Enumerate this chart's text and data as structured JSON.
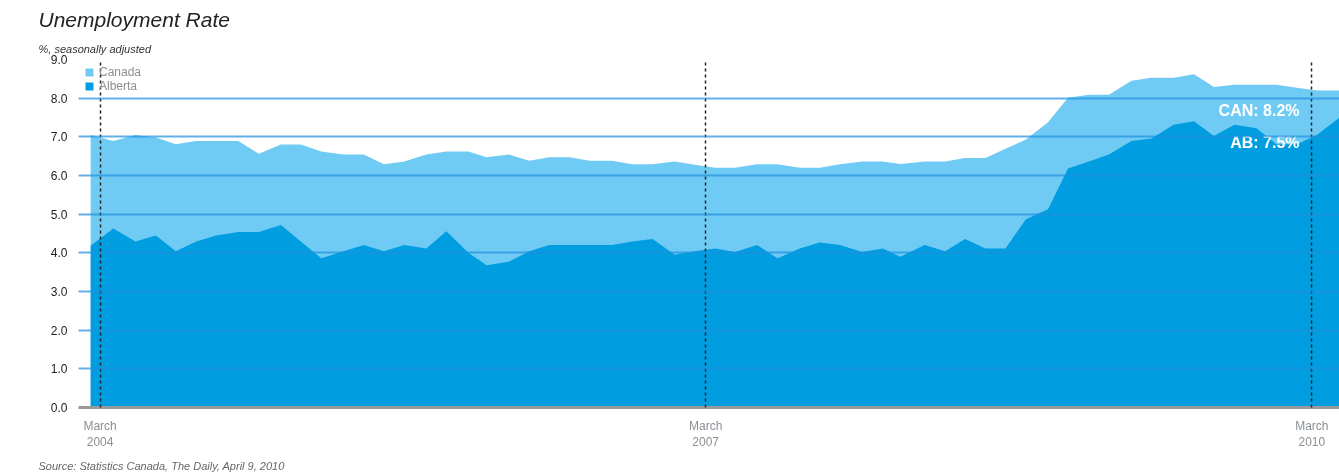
{
  "chart_data": {
    "type": "area",
    "title": "Unemployment Rate",
    "subtitle": "%, seasonally adjusted",
    "x": [
      "2004-02-13",
      "2004-03-25",
      "2004-05-04",
      "2004-06-10",
      "2004-07-16",
      "2004-08-22",
      "2004-09-27",
      "2004-11-06",
      "2004-12-13",
      "2005-01-22",
      "2005-02-27",
      "2005-04-05",
      "2005-05-15",
      "2005-06-21",
      "2005-07-27",
      "2005-09-02",
      "2005-10-12",
      "2005-11-17",
      "2005-12-27",
      "2006-01-29",
      "2006-03-10",
      "2006-04-16",
      "2006-05-22",
      "2006-06-28",
      "2006-08-03",
      "2006-09-13",
      "2006-10-19",
      "2006-11-25",
      "2007-01-04",
      "2007-02-09",
      "2007-03-18",
      "2007-04-23",
      "2007-06-02",
      "2007-07-09",
      "2007-08-18",
      "2007-09-23",
      "2007-10-30",
      "2007-12-09",
      "2008-01-15",
      "2008-02-16",
      "2008-03-31",
      "2008-05-07",
      "2008-06-12",
      "2008-07-19",
      "2008-08-24",
      "2008-09-30",
      "2008-11-09",
      "2008-12-15",
      "2009-01-22",
      "2009-02-27",
      "2009-04-09",
      "2009-05-15",
      "2009-06-24",
      "2009-07-31",
      "2009-09-05",
      "2009-10-12",
      "2009-11-21",
      "2009-12-27",
      "2010-02-02",
      "2010-03-10",
      "2010-04-20"
    ],
    "series": [
      {
        "name": "Canada",
        "color": "#6fcbf3",
        "values": [
          7.05,
          6.89,
          7.05,
          6.98,
          6.81,
          6.89,
          6.89,
          6.89,
          6.56,
          6.8,
          6.8,
          6.62,
          6.54,
          6.54,
          6.29,
          6.36,
          6.54,
          6.62,
          6.62,
          6.47,
          6.54,
          6.38,
          6.47,
          6.47,
          6.38,
          6.38,
          6.29,
          6.29,
          6.36,
          6.28,
          6.2,
          6.2,
          6.29,
          6.29,
          6.2,
          6.2,
          6.29,
          6.36,
          6.36,
          6.3,
          6.36,
          6.36,
          6.45,
          6.45,
          6.69,
          6.93,
          7.38,
          8.01,
          8.09,
          8.09,
          8.45,
          8.53,
          8.53,
          8.62,
          8.29,
          8.35,
          8.35,
          8.35,
          8.27,
          8.2,
          8.2
        ]
      },
      {
        "name": "Alberta",
        "color": "#009ee0",
        "values": [
          4.18,
          4.63,
          4.29,
          4.45,
          4.04,
          4.29,
          4.45,
          4.54,
          4.54,
          4.72,
          4.29,
          3.86,
          4.04,
          4.2,
          4.04,
          4.2,
          4.11,
          4.56,
          4.0,
          3.68,
          3.77,
          4.04,
          4.2,
          4.2,
          4.2,
          4.2,
          4.29,
          4.36,
          3.95,
          4.04,
          4.11,
          4.02,
          4.2,
          3.86,
          4.11,
          4.27,
          4.2,
          4.02,
          4.11,
          3.9,
          4.2,
          4.04,
          4.36,
          4.11,
          4.11,
          4.87,
          5.13,
          6.18,
          6.36,
          6.54,
          6.89,
          6.96,
          7.31,
          7.4,
          7.02,
          7.31,
          7.22,
          6.81,
          6.81,
          7.05,
          7.5
        ]
      }
    ],
    "xlim": [
      "2004-01-22",
      "2010-04-20"
    ],
    "xticks": [
      {
        "value": "2004-03-01",
        "label": "March\n2004"
      },
      {
        "value": "2007-03-01",
        "label": "March\n2007"
      },
      {
        "value": "2010-03-01",
        "label": "March\n2010"
      }
    ],
    "ylim": [
      0,
      9
    ],
    "yticks": [
      {
        "value": 0,
        "label": "0.0"
      },
      {
        "value": 1,
        "label": "1.0"
      },
      {
        "value": 2,
        "label": "2.0"
      },
      {
        "value": 3,
        "label": "3.0"
      },
      {
        "value": 4,
        "label": "4.0"
      },
      {
        "value": 5,
        "label": "5.0"
      },
      {
        "value": 6,
        "label": "6.0"
      },
      {
        "value": 7,
        "label": "7.0"
      },
      {
        "value": 8,
        "label": "8.0"
      },
      {
        "value": 9,
        "label": "9.0"
      }
    ],
    "grid": true,
    "legend": "top left",
    "annotations": [
      {
        "text": "CAN: 8.2%",
        "x": "2010-04-20",
        "y": 8.2
      },
      {
        "text": "AB: 7.5%",
        "x": "2010-04-20",
        "y": 7.5
      },
      "Source:  Statistics Canada, The Daily, April 9, 2010"
    ]
  }
}
